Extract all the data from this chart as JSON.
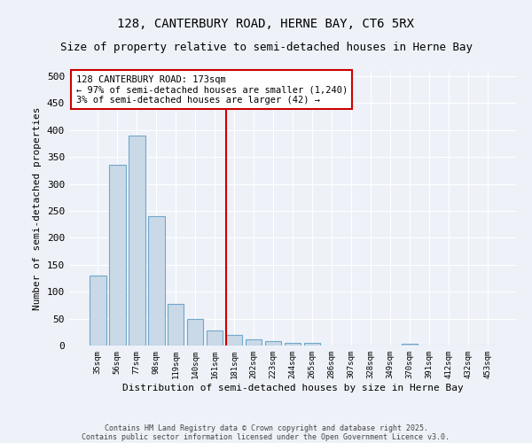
{
  "title_line1": "128, CANTERBURY ROAD, HERNE BAY, CT6 5RX",
  "title_line2": "Size of property relative to semi-detached houses in Herne Bay",
  "xlabel": "Distribution of semi-detached houses by size in Herne Bay",
  "ylabel": "Number of semi-detached properties",
  "categories": [
    "35sqm",
    "56sqm",
    "77sqm",
    "98sqm",
    "119sqm",
    "140sqm",
    "161sqm",
    "181sqm",
    "202sqm",
    "223sqm",
    "244sqm",
    "265sqm",
    "286sqm",
    "307sqm",
    "328sqm",
    "349sqm",
    "370sqm",
    "391sqm",
    "412sqm",
    "432sqm",
    "453sqm"
  ],
  "values": [
    130,
    335,
    390,
    240,
    77,
    50,
    28,
    20,
    11,
    8,
    5,
    5,
    0,
    0,
    0,
    0,
    3,
    0,
    0,
    0,
    0
  ],
  "bar_color": "#c9d9e8",
  "bar_edge_color": "#6fa8c8",
  "red_line_index": 7,
  "red_line_color": "#cc0000",
  "annotation_text": "128 CANTERBURY ROAD: 173sqm\n← 97% of semi-detached houses are smaller (1,240)\n3% of semi-detached houses are larger (42) →",
  "annotation_box_color": "#ffffff",
  "annotation_box_edge": "#cc0000",
  "ylim": [
    0,
    510
  ],
  "yticks": [
    0,
    50,
    100,
    150,
    200,
    250,
    300,
    350,
    400,
    450,
    500
  ],
  "footer1": "Contains HM Land Registry data © Crown copyright and database right 2025.",
  "footer2": "Contains public sector information licensed under the Open Government Licence v3.0.",
  "background_color": "#eef2f8",
  "title_fontsize": 10,
  "subtitle_fontsize": 9
}
